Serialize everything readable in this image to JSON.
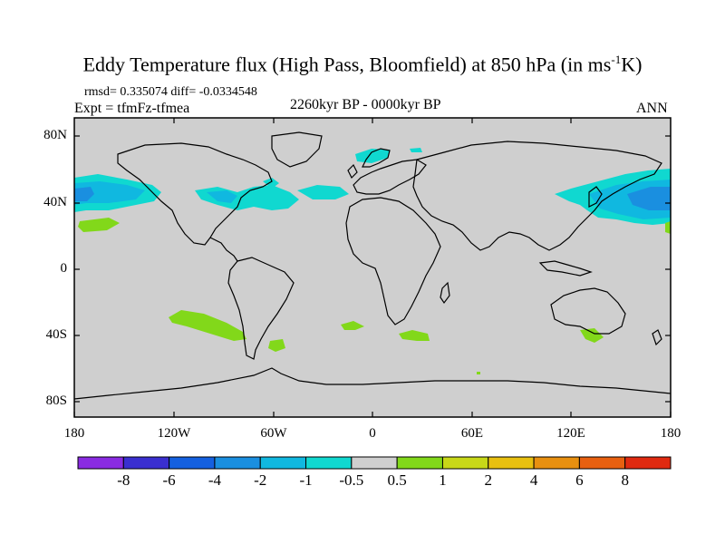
{
  "title": {
    "main": "Eddy Temperature flux (High Pass, Bloomfield) at 850 hPa (in ms",
    "exponent": "-1",
    "unit_tail": "K)"
  },
  "stats": {
    "text": "rmsd= 0.335074  diff= -0.0334548"
  },
  "experiment": "Expt = tfmFz-tfmea",
  "period": "2260kyr BP - 0000kyr BP",
  "season": "ANN",
  "axes": {
    "y_ticks": [
      "80N",
      "40N",
      "0",
      "40S",
      "80S"
    ],
    "x_ticks": [
      "180",
      "120W",
      "60W",
      "0",
      "60E",
      "120E",
      "180"
    ]
  },
  "colorbar": {
    "labels": [
      "-8",
      "-6",
      "-4",
      "-2",
      "-1",
      "-0.5",
      "0.5",
      "1",
      "2",
      "4",
      "6",
      "8"
    ],
    "colors": [
      "#8a2be2",
      "#3a2fd0",
      "#1560e0",
      "#1a8fe0",
      "#10b8e0",
      "#10d8d0",
      "#cfcfcf",
      "#82d81a",
      "#c8d818",
      "#e8c010",
      "#e89010",
      "#e86010",
      "#e02a10"
    ]
  },
  "colors": {
    "land_ocean_background": "#cfcfcf",
    "coastline": "#000000"
  }
}
